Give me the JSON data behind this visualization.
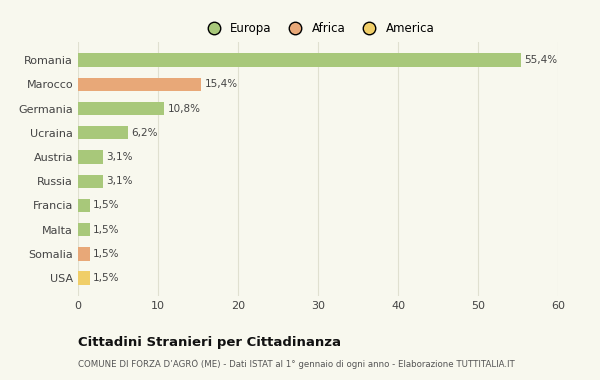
{
  "countries": [
    "Romania",
    "Marocco",
    "Germania",
    "Ucraina",
    "Austria",
    "Russia",
    "Francia",
    "Malta",
    "Somalia",
    "USA"
  ],
  "values": [
    55.4,
    15.4,
    10.8,
    6.2,
    3.1,
    3.1,
    1.5,
    1.5,
    1.5,
    1.5
  ],
  "labels": [
    "55,4%",
    "15,4%",
    "10,8%",
    "6,2%",
    "3,1%",
    "3,1%",
    "1,5%",
    "1,5%",
    "1,5%",
    "1,5%"
  ],
  "continents": [
    "Europa",
    "Africa",
    "Europa",
    "Europa",
    "Europa",
    "Europa",
    "Europa",
    "Europa",
    "Africa",
    "America"
  ],
  "colors": {
    "Europa": "#a8c87a",
    "Africa": "#e8a878",
    "America": "#f0ce68"
  },
  "legend_labels": [
    "Europa",
    "Africa",
    "America"
  ],
  "legend_colors": [
    "#a8c87a",
    "#e8a878",
    "#f0ce68"
  ],
  "xlim": [
    0,
    60
  ],
  "xticks": [
    0,
    10,
    20,
    30,
    40,
    50,
    60
  ],
  "title": "Cittadini Stranieri per Cittadinanza",
  "subtitle": "COMUNE DI FORZA D’AGRÒ (ME) - Dati ISTAT al 1° gennaio di ogni anno - Elaborazione TUTTITALIA.IT",
  "background_color": "#f8f8ee",
  "bar_height": 0.55,
  "grid_color": "#e0e0d0"
}
